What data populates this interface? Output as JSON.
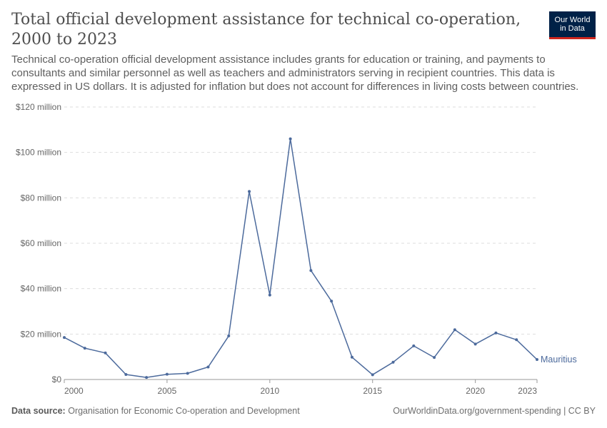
{
  "header": {
    "title": "Total official development assistance for technical co-operation, 2000 to 2023",
    "subtitle": "Technical co-operation official development assistance includes grants for education or training, and payments to consultants and similar personnel as well as teachers and administrators serving in recipient countries. This data is expressed in US dollars. It is adjusted for inflation but does not account for differences in living costs between countries."
  },
  "logo": {
    "line1": "Our World",
    "line2": "in Data",
    "bg_color": "#002147",
    "accent_color": "#ce261e"
  },
  "footer": {
    "source_label": "Data source:",
    "source_text": "Organisation for Economic Co-operation and Development",
    "right_text": "OurWorldinData.org/government-spending | CC BY"
  },
  "chart_data": {
    "type": "line",
    "xlim": [
      2000,
      2023
    ],
    "ylim": [
      0,
      120
    ],
    "y_unit": "million US dollars",
    "y_ticks": [
      {
        "value": 0,
        "label": "$0"
      },
      {
        "value": 20,
        "label": "$20 million"
      },
      {
        "value": 40,
        "label": "$40 million"
      },
      {
        "value": 60,
        "label": "$60 million"
      },
      {
        "value": 80,
        "label": "$80 million"
      },
      {
        "value": 100,
        "label": "$100 million"
      },
      {
        "value": 120,
        "label": "$120 million"
      }
    ],
    "x_ticks": [
      {
        "value": 2000,
        "label": "2000"
      },
      {
        "value": 2005,
        "label": "2005"
      },
      {
        "value": 2010,
        "label": "2010"
      },
      {
        "value": 2015,
        "label": "2015"
      },
      {
        "value": 2020,
        "label": "2020"
      },
      {
        "value": 2023,
        "label": "2023"
      }
    ],
    "grid": "horizontal dashed",
    "series": [
      {
        "name": "Mauritius",
        "color": "#4c6a9c",
        "x": [
          2000,
          2001,
          2002,
          2003,
          2004,
          2005,
          2006,
          2007,
          2008,
          2009,
          2010,
          2011,
          2012,
          2013,
          2014,
          2015,
          2016,
          2017,
          2018,
          2019,
          2020,
          2021,
          2022,
          2023
        ],
        "y": [
          18.5,
          13.8,
          11.7,
          2.2,
          0.9,
          2.3,
          2.7,
          5.5,
          19.2,
          82.8,
          37.2,
          106,
          48,
          34.5,
          9.8,
          2.1,
          7.6,
          14.8,
          9.7,
          21.9,
          15.6,
          20.5,
          17.5,
          8.8
        ]
      }
    ]
  }
}
